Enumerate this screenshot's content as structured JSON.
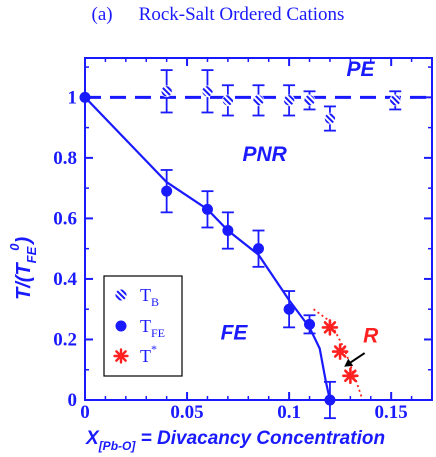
{
  "title": {
    "label": "(a)",
    "text": "Rock-Salt Ordered Cations"
  },
  "chart_data": {
    "type": "scatter",
    "title": "Rock-Salt Ordered Cations",
    "panel_label": "(a)",
    "xlabel": {
      "pre": "X",
      "sub": "[Pb-O]",
      "post": " = Divacancy Concentration"
    },
    "ylabel": {
      "pre": "T/(T",
      "sub": "FE",
      "sup": "0",
      "post": ")"
    },
    "xlim": [
      0,
      0.17
    ],
    "ylim": [
      0,
      1.13
    ],
    "xticks": [
      0,
      0.05,
      0.1,
      0.15
    ],
    "xtick_labels": [
      "0",
      "0.05",
      "0.1",
      "0.15"
    ],
    "yticks": [
      0,
      0.2,
      0.4,
      0.6,
      0.8,
      1
    ],
    "ytick_labels": [
      "0",
      "0.2",
      "0.4",
      "0.6",
      "0.8",
      "1"
    ],
    "colors": {
      "primary": "#1a1aff",
      "accent": "#ff2020"
    },
    "series": [
      {
        "name": "T_B",
        "legend": {
          "main": "T",
          "sub": "B"
        },
        "marker": "hatched-circle",
        "points": [
          {
            "x": 0.04,
            "y": 1.02,
            "err": 0.07
          },
          {
            "x": 0.06,
            "y": 1.02,
            "err": 0.07
          },
          {
            "x": 0.07,
            "y": 0.99,
            "err": 0.05
          },
          {
            "x": 0.085,
            "y": 0.99,
            "err": 0.05
          },
          {
            "x": 0.1,
            "y": 0.99,
            "err": 0.05
          },
          {
            "x": 0.11,
            "y": 0.99,
            "err": 0.03
          },
          {
            "x": 0.12,
            "y": 0.93,
            "err": 0.04
          },
          {
            "x": 0.152,
            "y": 0.99,
            "err": 0.03
          }
        ]
      },
      {
        "name": "T_FE",
        "legend": {
          "main": "T",
          "sub": "FE"
        },
        "marker": "filled-circle",
        "points": [
          {
            "x": 0,
            "y": 1.0,
            "err": 0
          },
          {
            "x": 0.04,
            "y": 0.69,
            "err": 0.07
          },
          {
            "x": 0.06,
            "y": 0.63,
            "err": 0.06
          },
          {
            "x": 0.07,
            "y": 0.56,
            "err": 0.06
          },
          {
            "x": 0.085,
            "y": 0.5,
            "err": 0.06
          },
          {
            "x": 0.1,
            "y": 0.3,
            "err": 0.06
          },
          {
            "x": 0.11,
            "y": 0.25,
            "err": 0.03
          },
          {
            "x": 0.12,
            "y": 0.0,
            "err": 0.06
          }
        ]
      },
      {
        "name": "T*",
        "legend": {
          "main": "T",
          "sup": "*"
        },
        "marker": "star",
        "points": [
          {
            "x": 0.12,
            "y": 0.24
          },
          {
            "x": 0.125,
            "y": 0.16
          },
          {
            "x": 0.13,
            "y": 0.08
          }
        ]
      }
    ],
    "lines": {
      "tb_dashed": {
        "y": 1.0
      },
      "fe_boundary": [
        [
          0,
          1.0
        ],
        [
          0.04,
          0.72
        ],
        [
          0.06,
          0.63
        ],
        [
          0.07,
          0.56
        ],
        [
          0.085,
          0.48
        ],
        [
          0.1,
          0.33
        ],
        [
          0.11,
          0.24
        ],
        [
          0.115,
          0.17
        ],
        [
          0.118,
          0.06
        ],
        [
          0.12,
          0.0
        ]
      ],
      "r_boundary": [
        [
          0.112,
          0.3
        ],
        [
          0.12,
          0.26
        ],
        [
          0.127,
          0.17
        ],
        [
          0.132,
          0.08
        ],
        [
          0.136,
          0.0
        ]
      ]
    },
    "annotations": [
      {
        "text": "PE",
        "x": 0.135,
        "y": 1.07,
        "role": "region"
      },
      {
        "text": "PNR",
        "x": 0.088,
        "y": 0.79,
        "role": "region"
      },
      {
        "text": "FE",
        "x": 0.073,
        "y": 0.2,
        "role": "region"
      },
      {
        "text": "R",
        "x": 0.14,
        "y": 0.19,
        "role": "region-accent"
      }
    ]
  }
}
